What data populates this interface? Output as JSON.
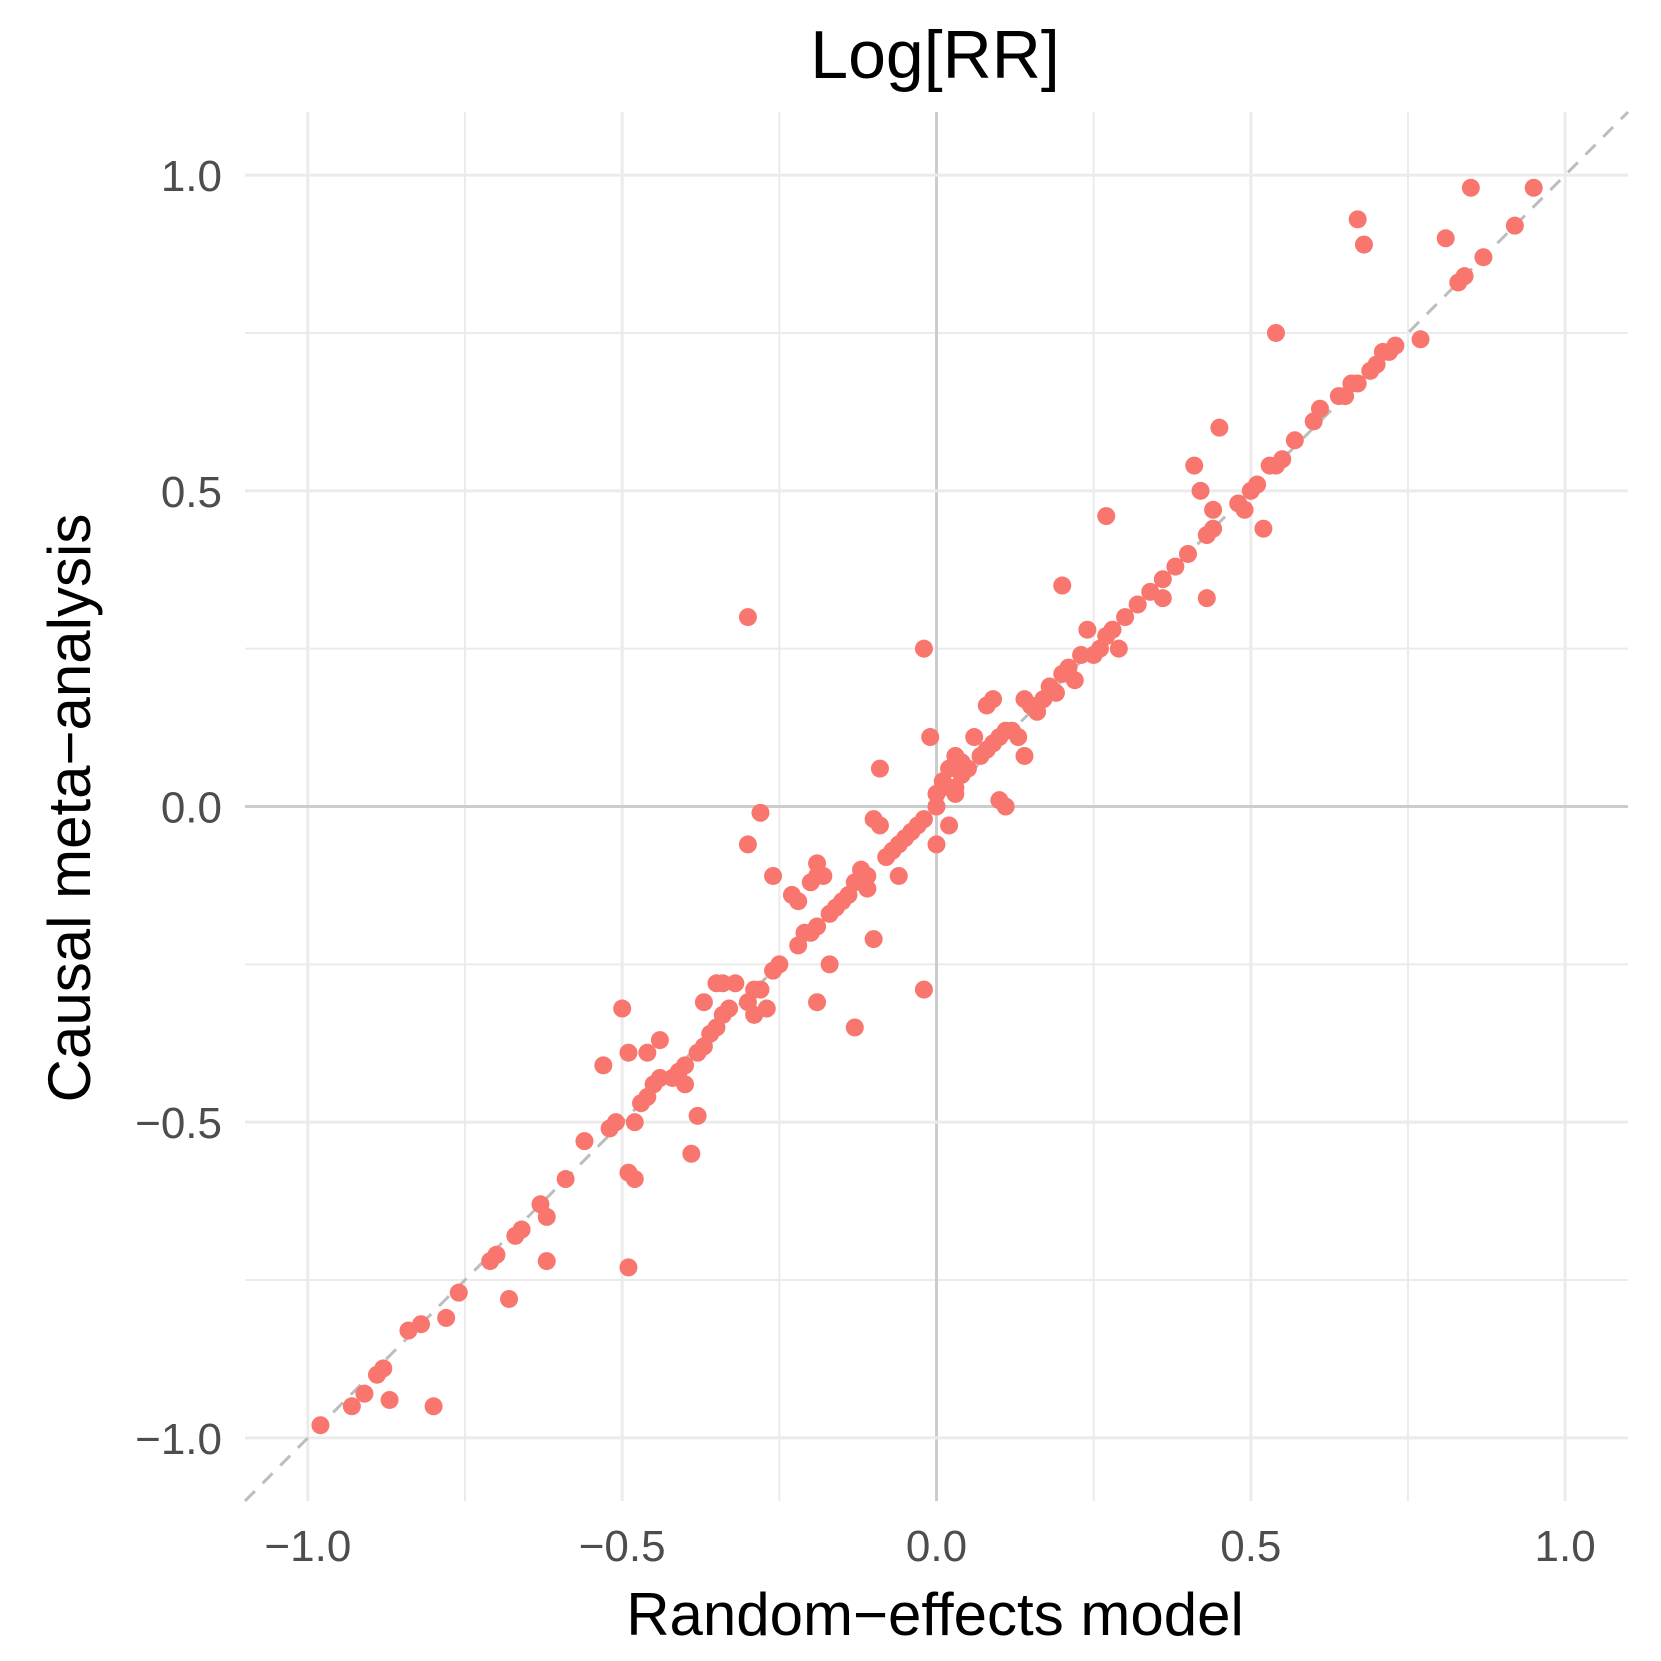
{
  "chart_data": {
    "type": "scatter",
    "title": "Log[RR]",
    "xlabel": "Random−effects model",
    "ylabel": "Causal meta−analysis",
    "xlim": [
      -1.1,
      1.1
    ],
    "ylim": [
      -1.1,
      1.1
    ],
    "x_ticks": [
      -1.0,
      -0.5,
      0.0,
      0.5,
      1.0
    ],
    "x_tick_labels": [
      "−1.0",
      "−0.5",
      "0.0",
      "0.5",
      "1.0"
    ],
    "y_ticks": [
      -1.0,
      -0.5,
      0.0,
      0.5,
      1.0
    ],
    "y_tick_labels": [
      "−1.0",
      "−0.5",
      "0.0",
      "0.5",
      "1.0"
    ],
    "minor_ticks": [
      -0.75,
      -0.25,
      0.25,
      0.75
    ],
    "grid": true,
    "reference_line": {
      "type": "identity",
      "style": "dashed",
      "color": "#bdbdbd"
    },
    "point_color": "#f8766d",
    "grid_color": "#ebebeb",
    "zero_line_color": "#cccccc",
    "points": [
      [
        -0.98,
        -0.98
      ],
      [
        -0.93,
        -0.95
      ],
      [
        -0.91,
        -0.93
      ],
      [
        -0.89,
        -0.9
      ],
      [
        -0.88,
        -0.89
      ],
      [
        -0.87,
        -0.94
      ],
      [
        -0.8,
        -0.95
      ],
      [
        -0.84,
        -0.83
      ],
      [
        -0.82,
        -0.82
      ],
      [
        -0.78,
        -0.81
      ],
      [
        -0.76,
        -0.77
      ],
      [
        -0.71,
        -0.72
      ],
      [
        -0.7,
        -0.71
      ],
      [
        -0.68,
        -0.78
      ],
      [
        -0.67,
        -0.68
      ],
      [
        -0.66,
        -0.67
      ],
      [
        -0.63,
        -0.63
      ],
      [
        -0.62,
        -0.65
      ],
      [
        -0.62,
        -0.72
      ],
      [
        -0.59,
        -0.59
      ],
      [
        -0.56,
        -0.53
      ],
      [
        -0.53,
        -0.41
      ],
      [
        -0.52,
        -0.51
      ],
      [
        -0.51,
        -0.5
      ],
      [
        -0.5,
        -0.32
      ],
      [
        -0.49,
        -0.39
      ],
      [
        -0.49,
        -0.58
      ],
      [
        -0.48,
        -0.59
      ],
      [
        -0.49,
        -0.73
      ],
      [
        -0.48,
        -0.5
      ],
      [
        -0.47,
        -0.47
      ],
      [
        -0.46,
        -0.46
      ],
      [
        -0.45,
        -0.44
      ],
      [
        -0.46,
        -0.39
      ],
      [
        -0.44,
        -0.37
      ],
      [
        -0.44,
        -0.43
      ],
      [
        -0.42,
        -0.43
      ],
      [
        -0.41,
        -0.42
      ],
      [
        -0.4,
        -0.41
      ],
      [
        -0.4,
        -0.44
      ],
      [
        -0.39,
        -0.55
      ],
      [
        -0.38,
        -0.49
      ],
      [
        -0.38,
        -0.39
      ],
      [
        -0.37,
        -0.31
      ],
      [
        -0.37,
        -0.38
      ],
      [
        -0.36,
        -0.36
      ],
      [
        -0.35,
        -0.35
      ],
      [
        -0.35,
        -0.28
      ],
      [
        -0.34,
        -0.28
      ],
      [
        -0.34,
        -0.33
      ],
      [
        -0.33,
        -0.32
      ],
      [
        -0.32,
        -0.28
      ],
      [
        -0.3,
        -0.31
      ],
      [
        -0.29,
        -0.29
      ],
      [
        -0.29,
        -0.33
      ],
      [
        -0.28,
        -0.29
      ],
      [
        -0.27,
        -0.32
      ],
      [
        -0.3,
        0.3
      ],
      [
        -0.3,
        -0.06
      ],
      [
        -0.28,
        -0.01
      ],
      [
        -0.26,
        -0.26
      ],
      [
        -0.25,
        -0.25
      ],
      [
        -0.26,
        -0.11
      ],
      [
        -0.23,
        -0.14
      ],
      [
        -0.22,
        -0.15
      ],
      [
        -0.21,
        -0.2
      ],
      [
        -0.2,
        -0.2
      ],
      [
        -0.22,
        -0.22
      ],
      [
        -0.19,
        -0.19
      ],
      [
        -0.2,
        -0.12
      ],
      [
        -0.19,
        -0.11
      ],
      [
        -0.19,
        -0.09
      ],
      [
        -0.19,
        -0.31
      ],
      [
        -0.18,
        -0.11
      ],
      [
        -0.17,
        -0.25
      ],
      [
        -0.17,
        -0.17
      ],
      [
        -0.16,
        -0.16
      ],
      [
        -0.15,
        -0.15
      ],
      [
        -0.14,
        -0.14
      ],
      [
        -0.13,
        -0.35
      ],
      [
        -0.13,
        -0.12
      ],
      [
        -0.12,
        -0.1
      ],
      [
        -0.11,
        -0.11
      ],
      [
        -0.11,
        -0.13
      ],
      [
        -0.1,
        -0.21
      ],
      [
        -0.1,
        -0.02
      ],
      [
        -0.09,
        -0.03
      ],
      [
        -0.09,
        0.06
      ],
      [
        -0.08,
        -0.08
      ],
      [
        -0.07,
        -0.07
      ],
      [
        -0.06,
        -0.11
      ],
      [
        -0.06,
        -0.06
      ],
      [
        -0.05,
        -0.05
      ],
      [
        -0.04,
        -0.04
      ],
      [
        -0.03,
        -0.03
      ],
      [
        -0.02,
        -0.02
      ],
      [
        -0.02,
        0.25
      ],
      [
        -0.02,
        -0.29
      ],
      [
        -0.01,
        0.11
      ],
      [
        0.0,
        -0.06
      ],
      [
        0.0,
        0.0
      ],
      [
        0.0,
        0.02
      ],
      [
        0.01,
        0.03
      ],
      [
        0.01,
        0.04
      ],
      [
        0.02,
        0.06
      ],
      [
        0.02,
        -0.03
      ],
      [
        0.03,
        0.03
      ],
      [
        0.03,
        0.02
      ],
      [
        0.03,
        0.08
      ],
      [
        0.04,
        0.05
      ],
      [
        0.04,
        0.07
      ],
      [
        0.05,
        0.06
      ],
      [
        0.06,
        0.11
      ],
      [
        0.07,
        0.08
      ],
      [
        0.08,
        0.09
      ],
      [
        0.09,
        0.1
      ],
      [
        0.08,
        0.16
      ],
      [
        0.09,
        0.17
      ],
      [
        0.1,
        0.11
      ],
      [
        0.1,
        0.01
      ],
      [
        0.11,
        0.0
      ],
      [
        0.11,
        0.12
      ],
      [
        0.12,
        0.12
      ],
      [
        0.13,
        0.11
      ],
      [
        0.14,
        0.17
      ],
      [
        0.14,
        0.08
      ],
      [
        0.15,
        0.16
      ],
      [
        0.16,
        0.15
      ],
      [
        0.17,
        0.17
      ],
      [
        0.18,
        0.19
      ],
      [
        0.19,
        0.18
      ],
      [
        0.2,
        0.21
      ],
      [
        0.2,
        0.35
      ],
      [
        0.21,
        0.22
      ],
      [
        0.22,
        0.2
      ],
      [
        0.23,
        0.24
      ],
      [
        0.24,
        0.28
      ],
      [
        0.25,
        0.24
      ],
      [
        0.26,
        0.25
      ],
      [
        0.27,
        0.27
      ],
      [
        0.27,
        0.46
      ],
      [
        0.28,
        0.28
      ],
      [
        0.29,
        0.25
      ],
      [
        0.3,
        0.3
      ],
      [
        0.32,
        0.32
      ],
      [
        0.34,
        0.34
      ],
      [
        0.36,
        0.36
      ],
      [
        0.36,
        0.33
      ],
      [
        0.38,
        0.38
      ],
      [
        0.4,
        0.4
      ],
      [
        0.41,
        0.54
      ],
      [
        0.42,
        0.5
      ],
      [
        0.43,
        0.43
      ],
      [
        0.43,
        0.33
      ],
      [
        0.44,
        0.44
      ],
      [
        0.44,
        0.47
      ],
      [
        0.45,
        0.6
      ],
      [
        0.48,
        0.48
      ],
      [
        0.49,
        0.47
      ],
      [
        0.5,
        0.5
      ],
      [
        0.51,
        0.51
      ],
      [
        0.52,
        0.44
      ],
      [
        0.53,
        0.54
      ],
      [
        0.54,
        0.54
      ],
      [
        0.55,
        0.55
      ],
      [
        0.54,
        0.75
      ],
      [
        0.57,
        0.58
      ],
      [
        0.6,
        0.61
      ],
      [
        0.61,
        0.63
      ],
      [
        0.64,
        0.65
      ],
      [
        0.65,
        0.65
      ],
      [
        0.66,
        0.67
      ],
      [
        0.67,
        0.67
      ],
      [
        0.67,
        0.93
      ],
      [
        0.68,
        0.89
      ],
      [
        0.69,
        0.69
      ],
      [
        0.7,
        0.7
      ],
      [
        0.71,
        0.72
      ],
      [
        0.72,
        0.72
      ],
      [
        0.73,
        0.73
      ],
      [
        0.77,
        0.74
      ],
      [
        0.81,
        0.9
      ],
      [
        0.83,
        0.83
      ],
      [
        0.84,
        0.84
      ],
      [
        0.85,
        0.98
      ],
      [
        0.87,
        0.87
      ],
      [
        0.92,
        0.92
      ],
      [
        0.95,
        0.98
      ]
    ]
  }
}
